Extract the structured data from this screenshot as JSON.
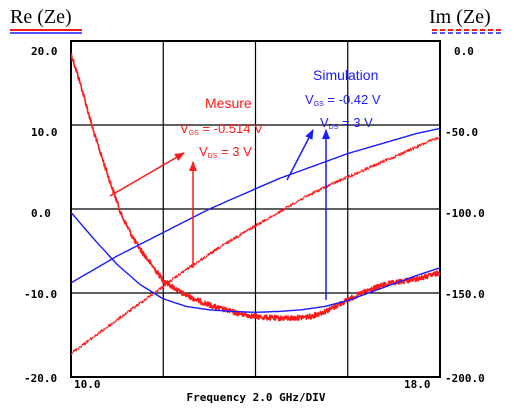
{
  "colors": {
    "red": "#ff1a1a",
    "blue": "#1a1aff",
    "frame": "#000000",
    "grid": "#000000"
  },
  "header": {
    "left_title": "Re (Ze)",
    "right_title": "Im (Ze)"
  },
  "chart_data": {
    "type": "line",
    "xlabel": "Frequency 2.0 GHz/DIV",
    "x_ticks": {
      "left": "10.0",
      "right": "18.0"
    },
    "xlim": [
      10.0,
      18.0
    ],
    "y_left": {
      "label": "Re (Ze)",
      "lim": [
        -20,
        20
      ],
      "ticks": [
        "20.0",
        "10.0",
        "0.0",
        "-10.0",
        "-20.0"
      ]
    },
    "y_right": {
      "label": "Im (Ze)",
      "lim": [
        -200,
        0
      ],
      "ticks": [
        "0.0",
        "-50.0",
        "-100.0",
        "-150.0",
        "-200.0"
      ]
    },
    "grid": true,
    "series": [
      {
        "key": "meas_re",
        "axis": "left",
        "style": "noisy-thick",
        "color": "#ff1a1a",
        "x": [
          10.0,
          10.2,
          10.5,
          10.8,
          11.1,
          11.4,
          11.7,
          12.0,
          12.4,
          12.8,
          13.2,
          13.6,
          14.0,
          14.4,
          14.8,
          15.2,
          15.6,
          16.0,
          16.4,
          16.8,
          17.2,
          17.6,
          18.0
        ],
        "y": [
          18.5,
          15.0,
          9.0,
          4.0,
          -0.8,
          -4.0,
          -6.3,
          -8.5,
          -10.0,
          -11.0,
          -11.8,
          -12.4,
          -12.8,
          -13.0,
          -13.0,
          -12.8,
          -12.0,
          -10.8,
          -9.8,
          -9.0,
          -8.6,
          -8.2,
          -7.6
        ]
      },
      {
        "key": "meas_im",
        "axis": "right",
        "style": "noisy-thin",
        "color": "#ff1a1a",
        "x": [
          10.0,
          10.5,
          11.0,
          11.5,
          12.0,
          12.5,
          13.0,
          13.5,
          14.0,
          14.5,
          15.0,
          15.5,
          16.0,
          16.5,
          17.0,
          17.5,
          18.0
        ],
        "y": [
          -186,
          -176,
          -166,
          -156,
          -146,
          -136,
          -127,
          -118,
          -110,
          -102,
          -94,
          -87,
          -81,
          -75,
          -69,
          -63,
          -57
        ]
      },
      {
        "key": "sim_re",
        "axis": "left",
        "style": "smooth",
        "color": "#1a1aff",
        "x": [
          10.0,
          10.5,
          11.0,
          11.5,
          12.0,
          12.5,
          13.0,
          13.5,
          14.0,
          14.5,
          15.0,
          15.5,
          16.0,
          16.5,
          17.0,
          17.5,
          18.0
        ],
        "y": [
          -0.4,
          -3.6,
          -6.6,
          -9.0,
          -10.7,
          -11.6,
          -12.0,
          -12.2,
          -12.3,
          -12.2,
          -12.0,
          -11.6,
          -10.9,
          -9.9,
          -8.9,
          -7.9,
          -7.0
        ]
      },
      {
        "key": "sim_im",
        "axis": "right",
        "style": "smooth",
        "color": "#1a1aff",
        "x": [
          10.0,
          10.5,
          11.0,
          11.5,
          12.0,
          12.5,
          13.0,
          13.5,
          14.0,
          14.5,
          15.0,
          15.5,
          16.0,
          16.5,
          17.0,
          17.5,
          18.0
        ],
        "y": [
          -144,
          -136,
          -128,
          -121,
          -114,
          -107,
          -100,
          -94,
          -88,
          -82,
          -77,
          -72,
          -67,
          -63,
          -59,
          -55,
          -52
        ]
      }
    ],
    "annotations": {
      "mesure": {
        "title": "Mesure",
        "vgs_eq": " = -0.514 V",
        "vds_eq": " = 3 V",
        "color": "#ff1a1a"
      },
      "simulation": {
        "title": "Simulation",
        "vgs_eq": " = -0.42 V",
        "vds_eq": " = 3 V",
        "color": "#1a1aff"
      },
      "symbols": {
        "v": "V",
        "gs": "GS",
        "ds": "DS"
      }
    }
  }
}
